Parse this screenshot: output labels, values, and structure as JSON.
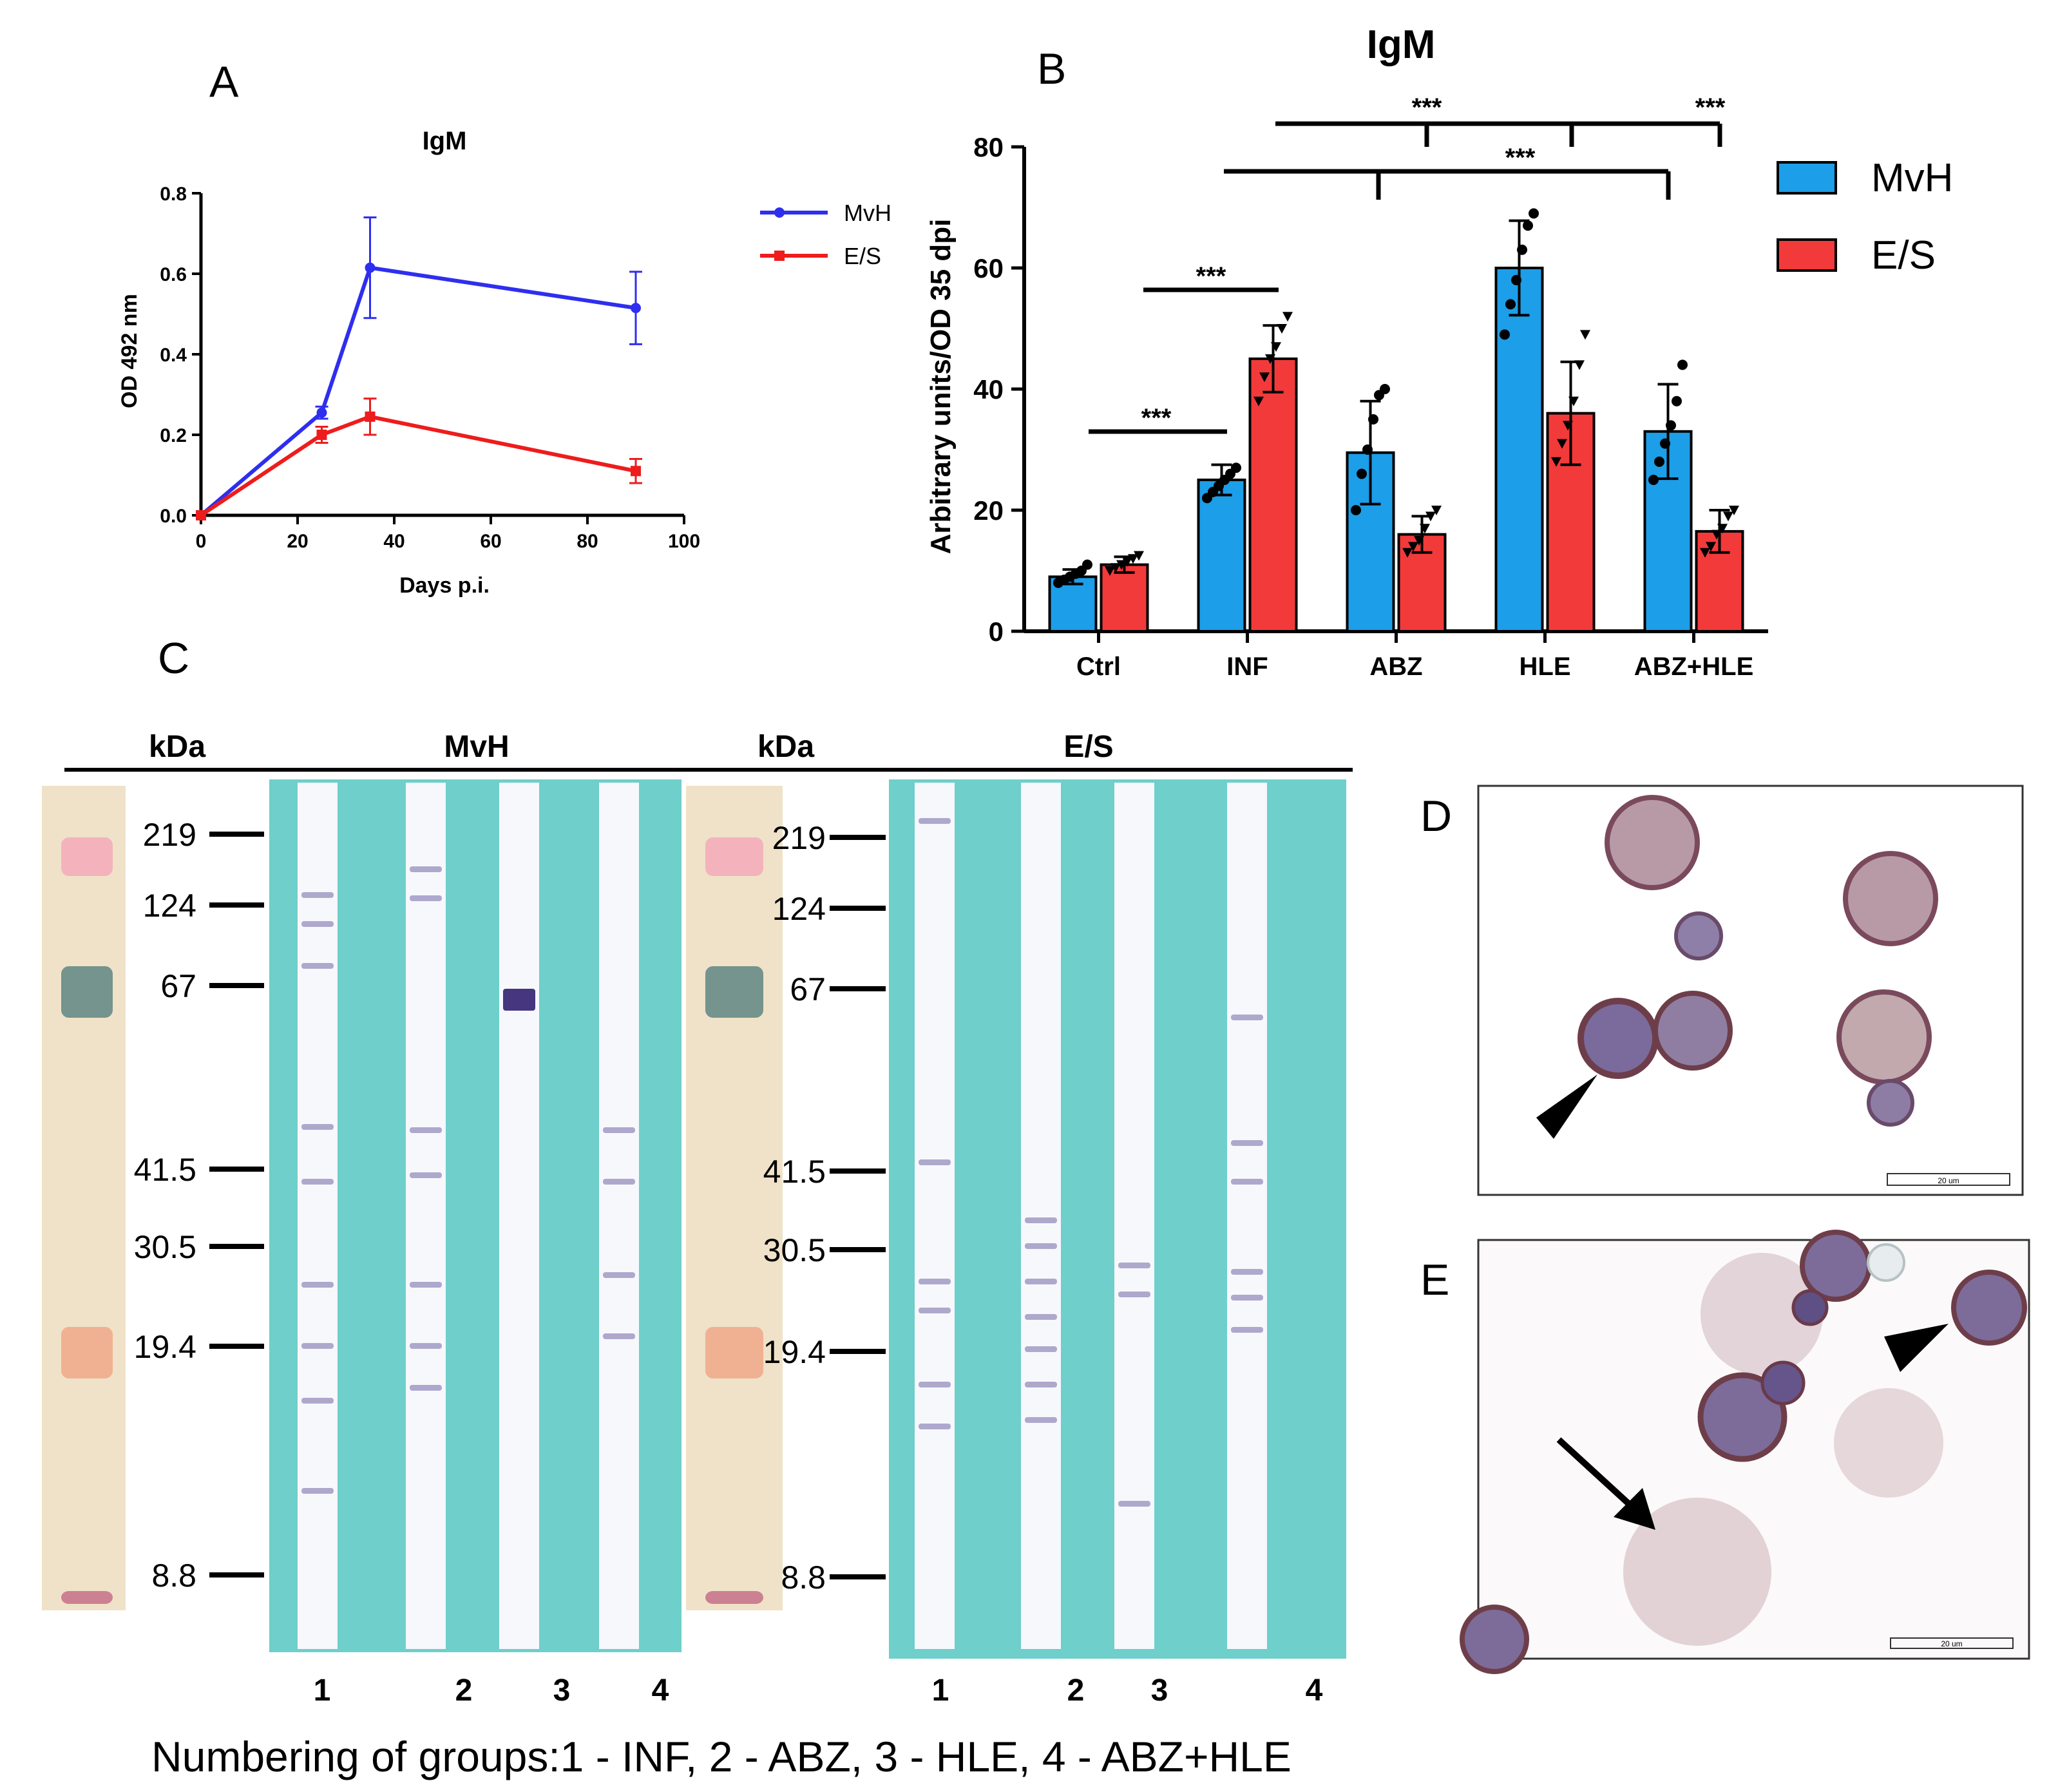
{
  "colors": {
    "mvh": "#2e2ef0",
    "es": "#ee1c1c",
    "mvh_bar": "#1c9ee8",
    "es_bar": "#f23a3a",
    "membrane": "#6ecfcb"
  },
  "panel_letters": {
    "A": "A",
    "B": "B",
    "C": "C",
    "D": "D",
    "E": "E"
  },
  "chart_data": [
    {
      "panel": "A",
      "type": "line",
      "title": "IgM",
      "xlabel": "Days p.i.",
      "ylabel": "OD 492 nm",
      "xlim": [
        0,
        100
      ],
      "ylim": [
        0,
        0.8
      ],
      "xticks": [
        0,
        20,
        40,
        60,
        80,
        100
      ],
      "xtick_labels": [
        "0",
        "20",
        "40",
        "60",
        "80",
        "100"
      ],
      "yticks": [
        0,
        0.2,
        0.4,
        0.6,
        0.8
      ],
      "ytick_labels": [
        "0.0",
        "0.2",
        "0.4",
        "0.6",
        "0.8"
      ],
      "series": [
        {
          "name": "MvH",
          "color": "#2e2ef0",
          "marker": "circle",
          "x": [
            0,
            25,
            35,
            90
          ],
          "y": [
            0,
            0.255,
            0.615,
            0.515
          ],
          "err": [
            0,
            0.015,
            0.125,
            0.09
          ]
        },
        {
          "name": "E/S",
          "color": "#ee1c1c",
          "marker": "square",
          "x": [
            0,
            25,
            35,
            90
          ],
          "y": [
            0,
            0.2,
            0.245,
            0.11
          ],
          "err": [
            0,
            0.02,
            0.045,
            0.03
          ]
        }
      ]
    },
    {
      "panel": "B",
      "type": "bar",
      "title": "IgM",
      "xlabel": "",
      "ylabel": "Arbitrary units/OD 35 dpi",
      "ylim": [
        0,
        80
      ],
      "yticks": [
        0,
        20,
        40,
        60,
        80
      ],
      "ytick_labels": [
        "0",
        "20",
        "40",
        "60",
        "80"
      ],
      "categories": [
        "Ctrl",
        "INF",
        "ABZ",
        "HLE",
        "ABZ+HLE"
      ],
      "series": [
        {
          "name": "MvH",
          "color": "#1c9ee8",
          "marker": "circle",
          "values": [
            9,
            25,
            29.5,
            60,
            33
          ],
          "sd": [
            1.2,
            2.5,
            8.5,
            7.8,
            7.8
          ],
          "points": [
            [
              8,
              8.5,
              9,
              9.5,
              10,
              11
            ],
            [
              22,
              23,
              24,
              25,
              26,
              27
            ],
            [
              20,
              26,
              30,
              35,
              39,
              40
            ],
            [
              49,
              54,
              58,
              63,
              67,
              69
            ],
            [
              25,
              28,
              31,
              34,
              38,
              44
            ]
          ]
        },
        {
          "name": "E/S",
          "color": "#f23a3a",
          "marker": "triangle",
          "values": [
            11,
            45,
            16,
            36,
            16.5
          ],
          "sd": [
            1.3,
            5.5,
            3,
            8.5,
            3.5
          ],
          "points": [
            [
              10,
              10.5,
              11,
              11.5,
              12,
              12.5
            ],
            [
              38,
              42,
              45,
              47,
              50,
              52
            ],
            [
              13,
              14,
              15,
              17,
              19,
              20
            ],
            [
              28,
              31,
              34,
              38,
              44,
              49
            ],
            [
              13,
              14,
              16,
              17,
              19,
              20
            ]
          ]
        }
      ],
      "significance": [
        {
          "label": "***",
          "from": "Ctrl",
          "to": "INF"
        },
        {
          "label": "***",
          "from": "INF",
          "to": "INF-ES"
        },
        {
          "label": "***",
          "from": "INF",
          "to": [
            "ABZ",
            "ABZ+HLE"
          ]
        },
        {
          "label": "***",
          "from": "INF-ES",
          "to": [
            "ABZ-ES",
            "HLE-ES",
            "ABZ+HLE-ES"
          ]
        }
      ],
      "sig_labels": [
        "***",
        "***",
        "***",
        "***",
        "***"
      ]
    }
  ],
  "blot": {
    "kda_label": "kDa",
    "mvh_label": "MvH",
    "es_label": "E/S",
    "markers": [
      "219",
      "124",
      "67",
      "41.5",
      "30.5",
      "19.4",
      "8.8"
    ],
    "lane_numbers_left": [
      "1",
      "2",
      "3",
      "4"
    ],
    "lane_numbers_right": [
      "1",
      "2",
      "3",
      "4"
    ]
  },
  "micrographs": {
    "scale_bar_text": "20 um"
  },
  "caption": "Numbering of groups:1 - INF, 2 - ABZ, 3 - HLE, 4 - ABZ+HLE"
}
